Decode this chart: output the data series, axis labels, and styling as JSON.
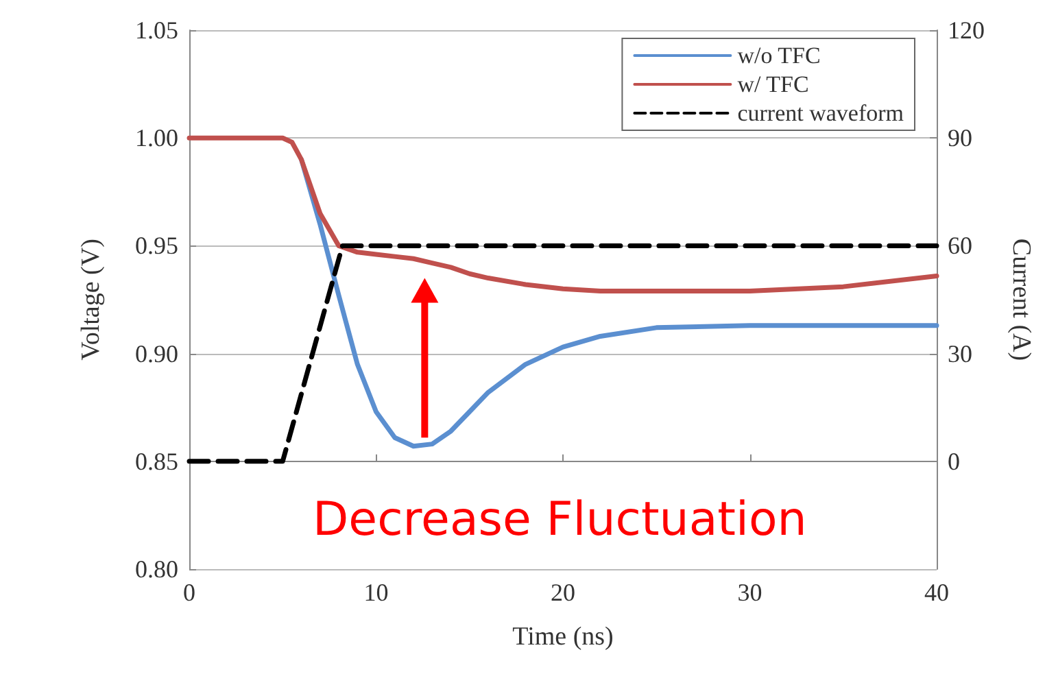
{
  "chart_data": {
    "type": "line",
    "xlabel": "Time (ns)",
    "ylabel": "Voltage (V)",
    "y2label": "Current (A)",
    "x": [
      0,
      5,
      5.5,
      6,
      7,
      8,
      9,
      10,
      11,
      12,
      13,
      14,
      15,
      16,
      18,
      20,
      22,
      25,
      30,
      35,
      40
    ],
    "series": [
      {
        "name": "w/o TFC",
        "color": "#5b8fd0",
        "values": [
          null,
          null,
          null,
          0.99,
          0.96,
          0.927,
          0.895,
          0.873,
          0.861,
          0.857,
          0.858,
          0.864,
          0.873,
          0.882,
          0.895,
          0.903,
          0.908,
          0.912,
          0.913,
          0.913,
          0.913
        ]
      },
      {
        "name": "w/ TFC",
        "color": "#c0504d",
        "values": [
          1.0,
          1.0,
          0.998,
          0.99,
          0.965,
          0.95,
          0.947,
          0.946,
          0.945,
          0.944,
          0.942,
          0.94,
          0.937,
          0.935,
          0.932,
          0.93,
          0.929,
          0.929,
          0.929,
          0.931,
          0.936
        ]
      },
      {
        "name": "current waveform",
        "color": "#000000",
        "axis": "y2",
        "line_style": "dashed",
        "x": [
          0,
          5,
          8.2,
          40
        ],
        "values": [
          0,
          0,
          60,
          60
        ]
      }
    ],
    "xlim": [
      0,
      40
    ],
    "xticks": [
      0,
      10,
      20,
      30,
      40
    ],
    "ylim": [
      0.8,
      1.05
    ],
    "yticks": [
      {
        "value": 0.8,
        "label": "0.80"
      },
      {
        "value": 0.85,
        "label": "0.85"
      },
      {
        "value": 0.9,
        "label": "0.90"
      },
      {
        "value": 0.95,
        "label": "0.95"
      },
      {
        "value": 1.0,
        "label": "1.00"
      },
      {
        "value": 1.05,
        "label": "1.05"
      }
    ],
    "y2lim": [
      -30,
      120
    ],
    "y2ticks": [
      0,
      30,
      60,
      90,
      120
    ],
    "grid": "y",
    "legend": "top right",
    "marker": "none",
    "line_style": "solid",
    "annotations": [
      "Decrease Fluctuation"
    ]
  }
}
